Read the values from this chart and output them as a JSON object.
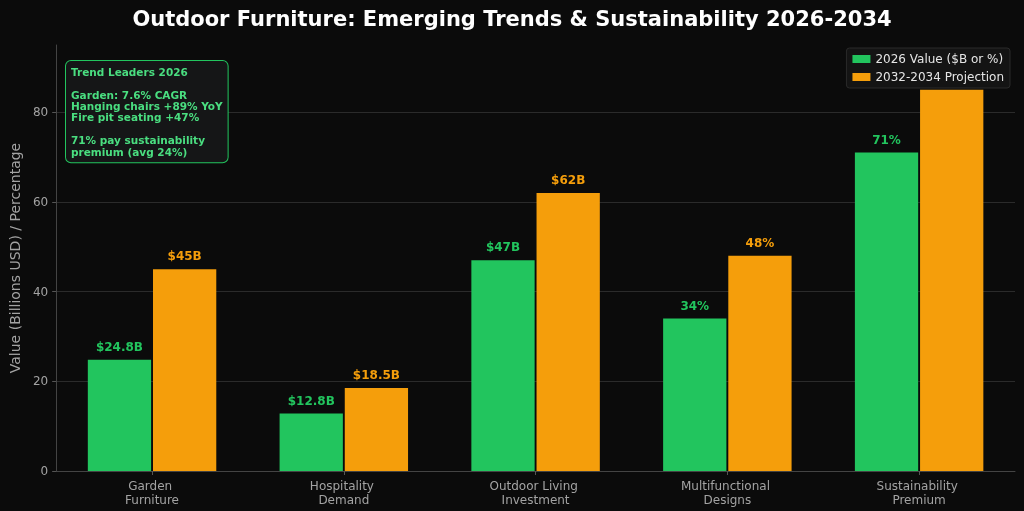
{
  "chart_data": {
    "type": "bar",
    "title": "Outdoor Furniture: Emerging Trends & Sustainability 2026-2034",
    "ylabel": "Value (Billions USD) / Percentage",
    "categories": [
      "Garden Furniture",
      "Hospitality Demand",
      "Outdoor Living Investment",
      "Multifunctional Designs",
      "Sustainability Premium"
    ],
    "series": [
      {
        "name": "2026 Value ($B or %)",
        "color": "#22c55e",
        "values": [
          24.8,
          12.8,
          47,
          34,
          71
        ],
        "value_labels": [
          "$24.8B",
          "$12.8B",
          "$47B",
          "34%",
          "71%"
        ]
      },
      {
        "name": "2032-2034 Projection",
        "color": "#f59e0b",
        "values": [
          45,
          18.5,
          62,
          48,
          85
        ],
        "value_labels": [
          "$45B",
          "$18.5B",
          "$62B",
          "48%",
          null
        ]
      }
    ],
    "ylim": [
      0,
      95
    ],
    "yticks": [
      0,
      20,
      40,
      60,
      80
    ],
    "grid": "y",
    "legend": "top right",
    "annotations": [
      "Trend Leaders 2026\n\nGarden: 7.6% CAGR\nHanging chairs +89% YoY\nFire pit seating +47%\n\n71% pay sustainability\npremium (avg 24%)"
    ]
  }
}
